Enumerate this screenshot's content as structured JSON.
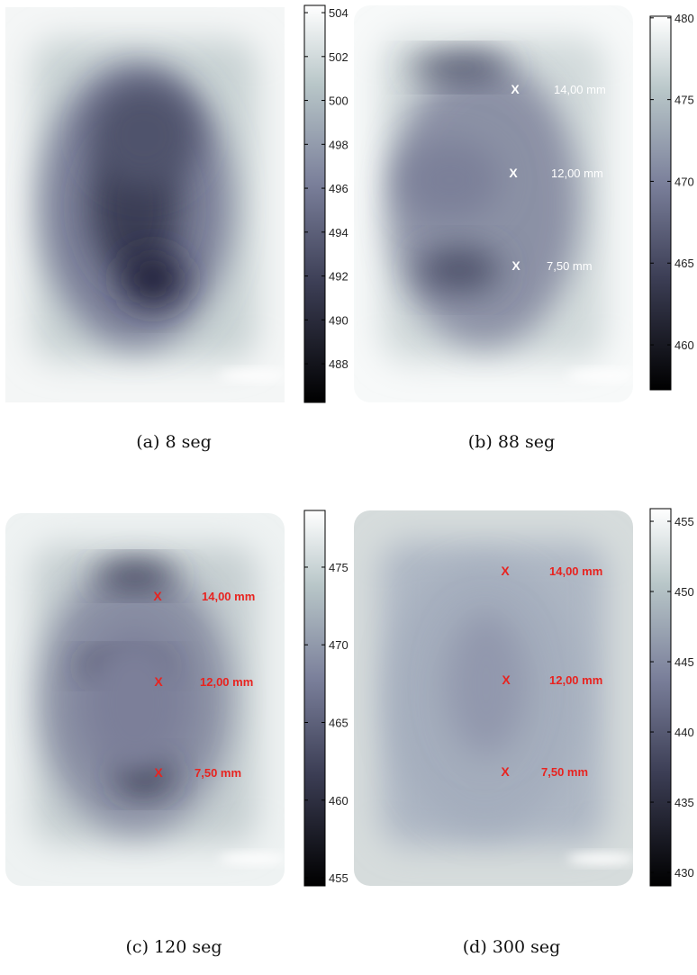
{
  "panels": [
    {
      "caption": "(a) 8 seg",
      "annotation_color": "#ffffff",
      "colorbar": {
        "lim": [
          486.24,
          504.33
        ],
        "ticks": [
          488,
          490,
          492,
          494,
          496,
          498,
          500,
          502,
          504
        ]
      },
      "annotations": []
    },
    {
      "caption": "(b) 88 seg",
      "annotation_color": "#ffffff",
      "colorbar": {
        "lim": [
          457.25,
          480.1
        ],
        "ticks": [
          460,
          465,
          470,
          475,
          480
        ]
      },
      "annotations": [
        {
          "marker": "X",
          "label": "14,00 mm"
        },
        {
          "marker": "X",
          "label": "12,00 mm"
        },
        {
          "marker": "X",
          "label": "7,50 mm"
        }
      ]
    },
    {
      "caption": "(c) 120 seg",
      "annotation_color": "#e8231f",
      "colorbar": {
        "lim": [
          454.48,
          478.65
        ],
        "ticks": [
          455,
          460,
          465,
          470,
          475
        ]
      },
      "annotations": [
        {
          "marker": "X",
          "label": "14,00 mm"
        },
        {
          "marker": "X",
          "label": "12,00 mm"
        },
        {
          "marker": "X",
          "label": "7,50 mm"
        }
      ]
    },
    {
      "caption": "(d) 300 seg",
      "annotation_color": "#e8231f",
      "colorbar": {
        "lim": [
          429.04,
          455.9
        ],
        "ticks": [
          430,
          435,
          440,
          445,
          450,
          455
        ]
      },
      "annotations": [
        {
          "marker": "X",
          "label": "14,00 mm"
        },
        {
          "marker": "X",
          "label": "12,00 mm"
        },
        {
          "marker": "X",
          "label": "7,50 mm"
        }
      ]
    }
  ]
}
